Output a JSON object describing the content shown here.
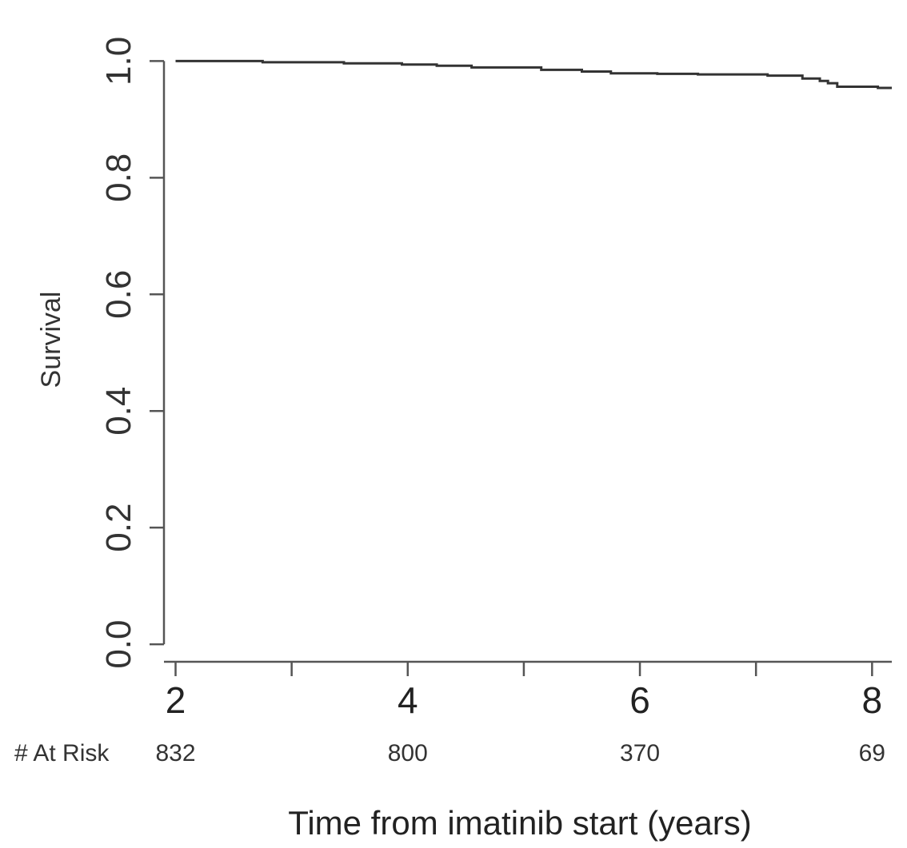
{
  "chart_data": {
    "type": "line",
    "step": true,
    "xlabel": "Time from imatinib start (years)",
    "ylabel": "Survival",
    "xlim": [
      1.9,
      8.17
    ],
    "ylim": [
      -0.03,
      1.08
    ],
    "x_ticks": [
      "2",
      "4",
      "6",
      "8"
    ],
    "x_minor_ticks": [
      3,
      5,
      7
    ],
    "y_ticks": [
      "0.0",
      "0.2",
      "0.4",
      "0.6",
      "0.8",
      "1.0"
    ],
    "grid": false,
    "series": [
      {
        "x": [
          2.0,
          2.75,
          3.45,
          3.95,
          4.25,
          4.55,
          5.15,
          5.5,
          5.75,
          6.15,
          6.5,
          7.1,
          7.4,
          7.55,
          7.62,
          7.7,
          8.05,
          8.17
        ],
        "values": [
          1.0,
          0.998,
          0.996,
          0.994,
          0.992,
          0.989,
          0.985,
          0.982,
          0.979,
          0.978,
          0.977,
          0.975,
          0.97,
          0.966,
          0.962,
          0.956,
          0.954,
          0.954
        ]
      }
    ],
    "at_risk": {
      "label": "# At Risk",
      "x": [
        2,
        4,
        6,
        8
      ],
      "values": [
        "832",
        "800",
        "370",
        "69"
      ]
    }
  }
}
